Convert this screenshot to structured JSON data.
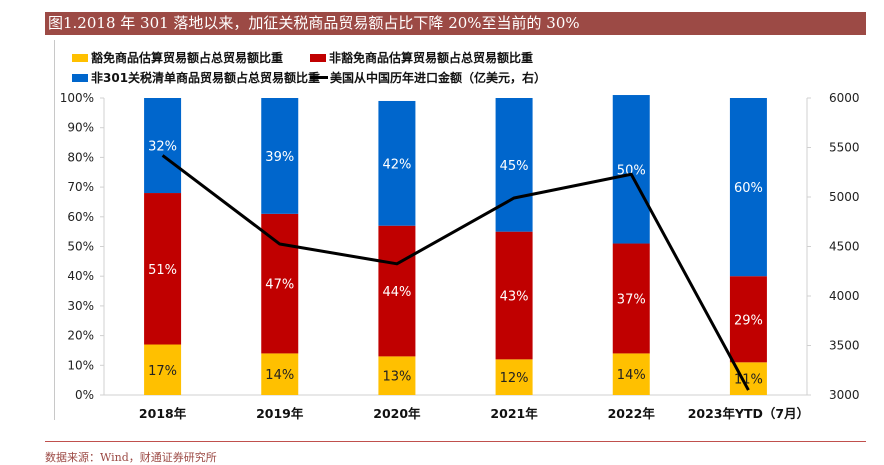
{
  "title": "图1.2018 年 301 落地以来，加征关税商品贸易额占比下降 20%至当前的 30%",
  "source": "数据来源：Wind，财通证券研究所",
  "chart_data": {
    "type": "bar",
    "stacked": true,
    "categories": [
      "2018年",
      "2019年",
      "2020年",
      "2021年",
      "2022年",
      "2023年YTD（7月）"
    ],
    "series": [
      {
        "name": "豁免商品估算贸易额占总贸易额比重",
        "color": "#ffc000",
        "values": [
          17,
          14,
          13,
          12,
          14,
          11
        ],
        "labels": [
          "17%",
          "14%",
          "13%",
          "12%",
          "14%",
          "11%"
        ]
      },
      {
        "name": "非豁免商品估算贸易额占总贸易额比重",
        "color": "#c00000",
        "values": [
          51,
          47,
          44,
          43,
          37,
          29
        ],
        "labels": [
          "51%",
          "47%",
          "44%",
          "43%",
          "37%",
          "29%"
        ]
      },
      {
        "name": "非301关税清单商品贸易额占总贸易额比重",
        "color": "#0066cc",
        "values": [
          32,
          39,
          42,
          45,
          50,
          60
        ],
        "labels": [
          "32%",
          "39%",
          "42%",
          "45%",
          "50%",
          "60%"
        ]
      }
    ],
    "line": {
      "name": "美国从中国历年进口金额（亿美元，右）",
      "color": "#000000",
      "axis": "right",
      "values": [
        5420,
        4525,
        4325,
        4990,
        5230,
        3050
      ]
    },
    "y_left": {
      "ylim": [
        0,
        100
      ],
      "ticks": [
        "0%",
        "10%",
        "20%",
        "30%",
        "40%",
        "50%",
        "60%",
        "70%",
        "80%",
        "90%",
        "100%"
      ]
    },
    "y_right": {
      "ylim": [
        3000,
        6000
      ],
      "ticks": [
        "3000",
        "3500",
        "4000",
        "4500",
        "5000",
        "5500",
        "6000"
      ]
    },
    "grid": false,
    "legend_position": "top"
  }
}
